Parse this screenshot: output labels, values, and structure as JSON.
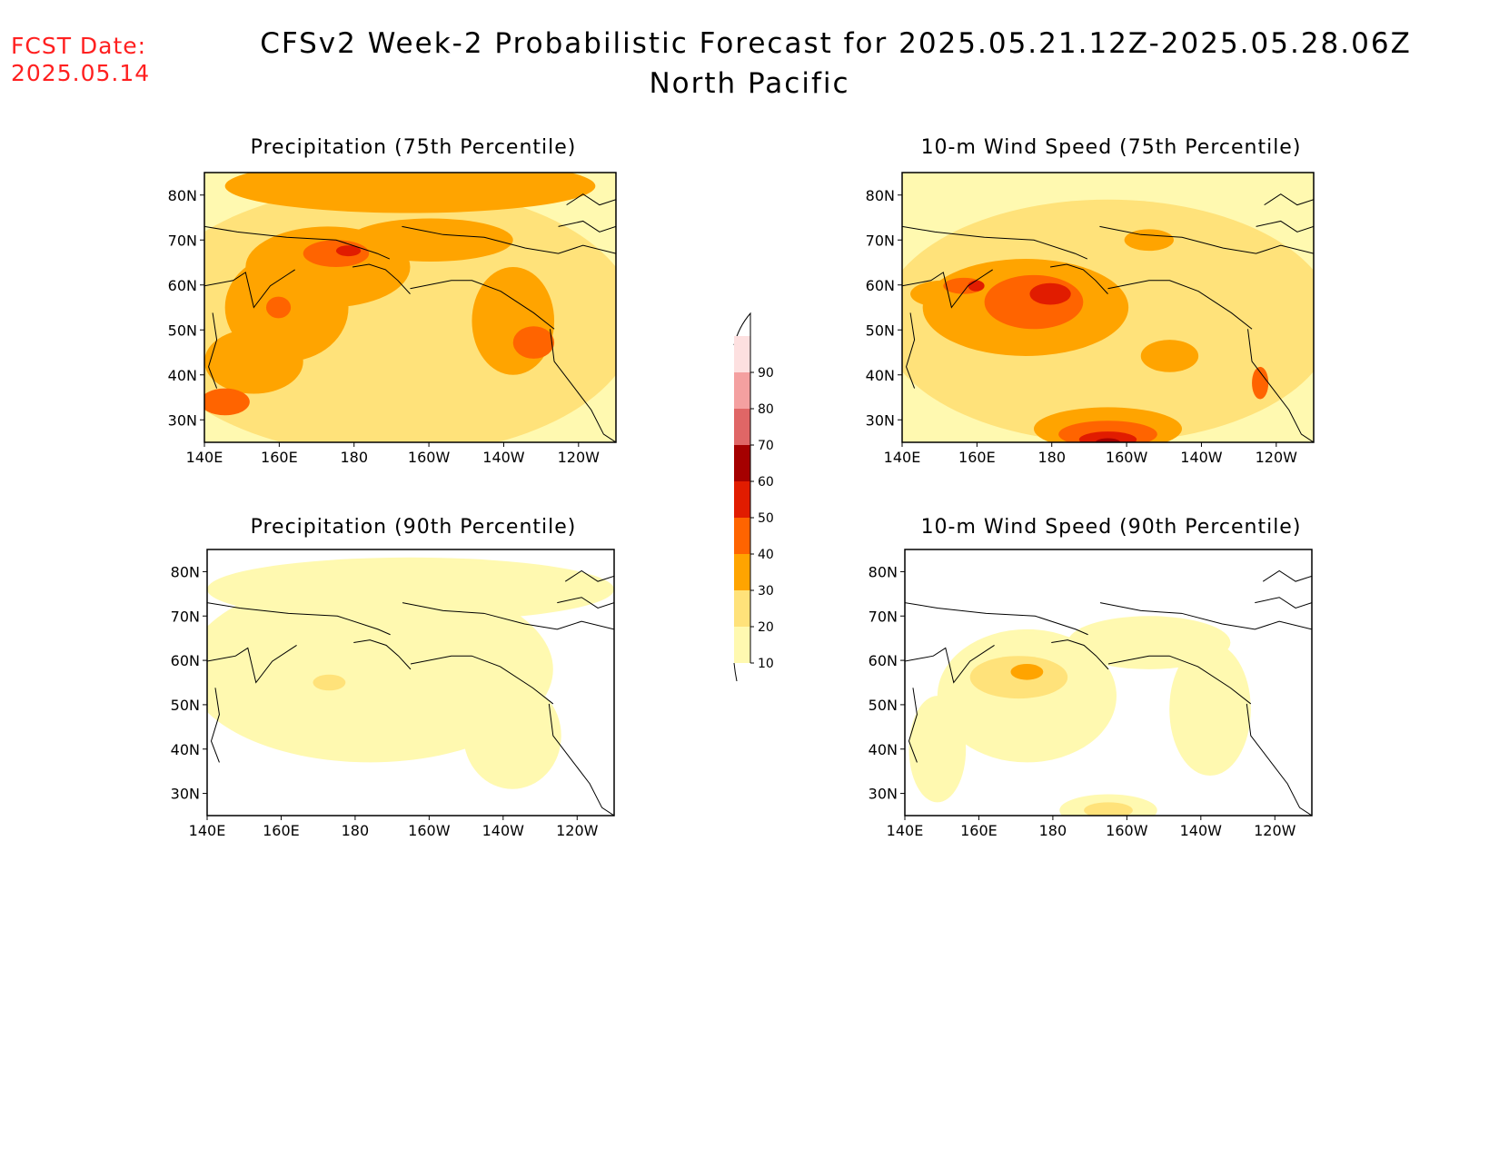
{
  "header": {
    "fcst_label": "FCST Date:",
    "fcst_date": "2025.05.14",
    "title_line1": "CFSv2 Week-2 Probabilistic Forecast for 2025.05.21.12Z-2025.05.28.06Z",
    "title_line2": "North Pacific"
  },
  "axes": {
    "lon_labels": [
      "140E",
      "160E",
      "180",
      "160W",
      "140W",
      "120W"
    ],
    "lat_labels": [
      "80N",
      "70N",
      "60N",
      "50N",
      "40N",
      "30N"
    ]
  },
  "panels": [
    {
      "id": "precip75",
      "title": "Precipitation (75th Percentile)"
    },
    {
      "id": "wind75",
      "title": "10-m Wind Speed (75th Percentile)"
    },
    {
      "id": "precip90",
      "title": "Precipitation (90th Percentile)"
    },
    {
      "id": "wind90",
      "title": "10-m Wind Speed (90th Percentile)"
    }
  ],
  "colorbar": {
    "levels": [
      "10",
      "20",
      "30",
      "40",
      "50",
      "60",
      "70",
      "80",
      "90"
    ],
    "colors": [
      "#fff9b0",
      "#ffe27a",
      "#ffa400",
      "#ff6400",
      "#e11c00",
      "#a50000",
      "#e06666",
      "#f4a0a0",
      "#fde0e0"
    ]
  }
}
